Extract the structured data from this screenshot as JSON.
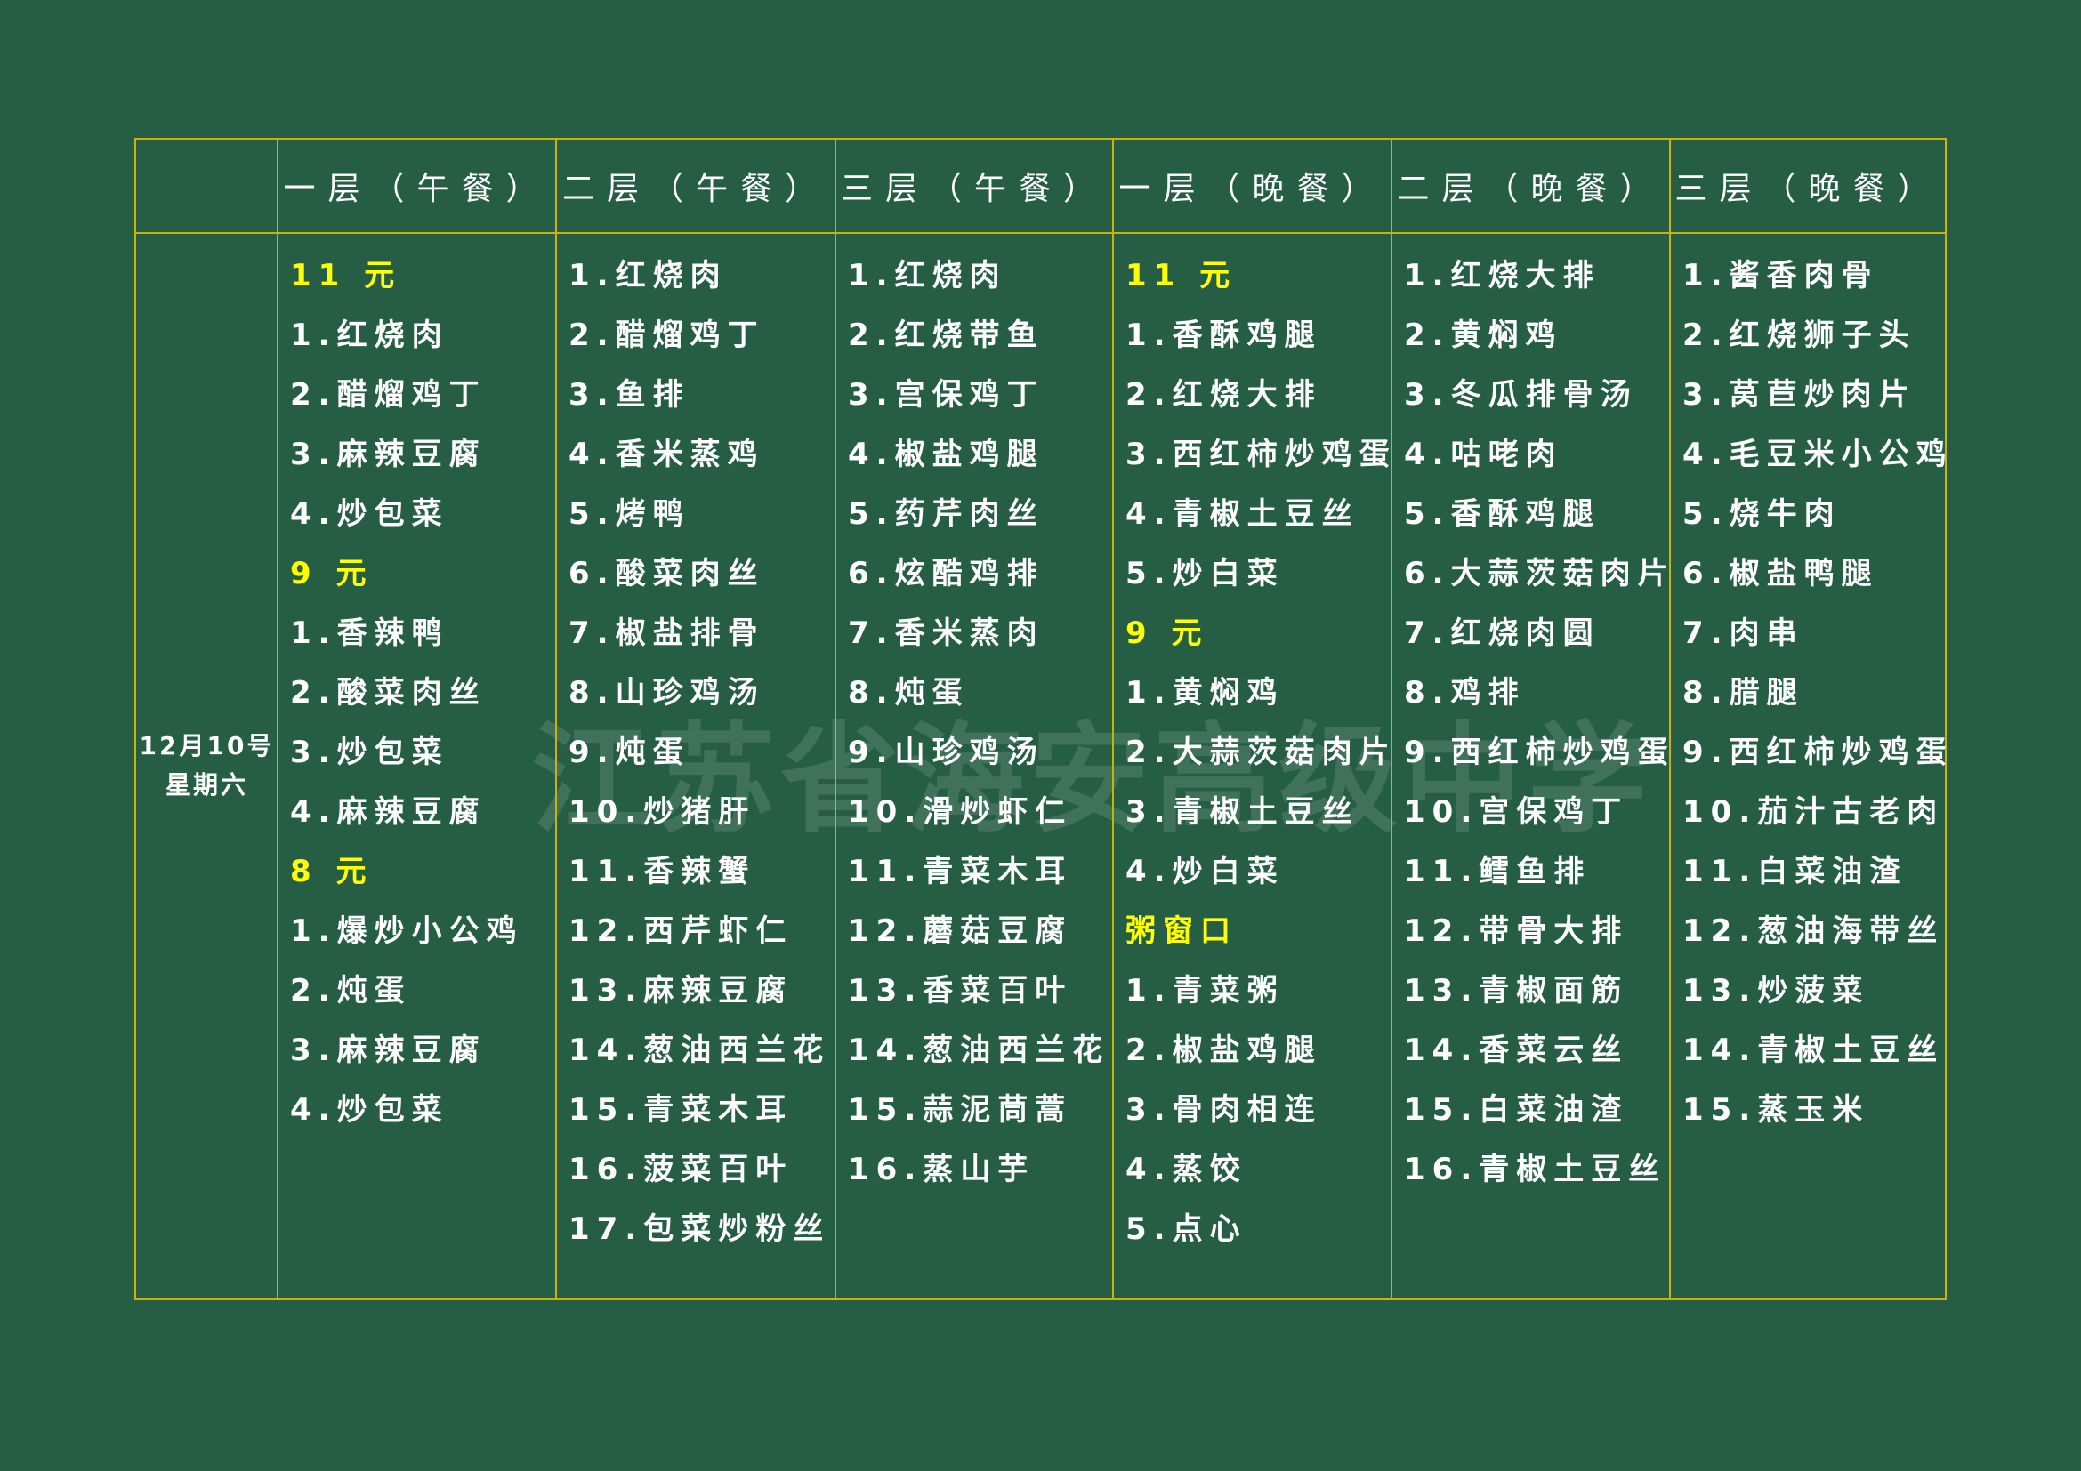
{
  "colors": {
    "background": "#255e45",
    "border": "#c9b30a",
    "price_heading": "#ffff00",
    "text": "#ffffff"
  },
  "watermark": "江苏省海安高级中学",
  "date": {
    "line1": "12月10号",
    "line2": "星期六"
  },
  "columns": [
    {
      "header": "一层（午餐）",
      "items": [
        {
          "text": "11 元",
          "price": true
        },
        {
          "text": "1.红烧肉"
        },
        {
          "text": "2.醋熘鸡丁"
        },
        {
          "text": "3.麻辣豆腐"
        },
        {
          "text": "4.炒包菜"
        },
        {
          "text": "9 元",
          "price": true
        },
        {
          "text": "1.香辣鸭"
        },
        {
          "text": "2.酸菜肉丝"
        },
        {
          "text": "3.炒包菜"
        },
        {
          "text": "4.麻辣豆腐"
        },
        {
          "text": "8 元",
          "price": true
        },
        {
          "text": "1.爆炒小公鸡"
        },
        {
          "text": "2.炖蛋"
        },
        {
          "text": "3.麻辣豆腐"
        },
        {
          "text": "4.炒包菜"
        }
      ]
    },
    {
      "header": "二层（午餐）",
      "items": [
        {
          "text": "1.红烧肉"
        },
        {
          "text": "2.醋熘鸡丁"
        },
        {
          "text": "3.鱼排"
        },
        {
          "text": "4.香米蒸鸡"
        },
        {
          "text": "5.烤鸭"
        },
        {
          "text": "6.酸菜肉丝"
        },
        {
          "text": "7.椒盐排骨"
        },
        {
          "text": "8.山珍鸡汤"
        },
        {
          "text": "9.炖蛋"
        },
        {
          "text": "10.炒猪肝"
        },
        {
          "text": "11.香辣蟹"
        },
        {
          "text": "12.西芹虾仁"
        },
        {
          "text": "13.麻辣豆腐"
        },
        {
          "text": "14.葱油西兰花"
        },
        {
          "text": "15.青菜木耳"
        },
        {
          "text": "16.菠菜百叶"
        },
        {
          "text": "17.包菜炒粉丝"
        }
      ]
    },
    {
      "header": "三层（午餐）",
      "items": [
        {
          "text": "1.红烧肉"
        },
        {
          "text": "2.红烧带鱼"
        },
        {
          "text": "3.宫保鸡丁"
        },
        {
          "text": "4.椒盐鸡腿"
        },
        {
          "text": "5.药芹肉丝"
        },
        {
          "text": "6.炫酷鸡排"
        },
        {
          "text": "7.香米蒸肉"
        },
        {
          "text": "8.炖蛋"
        },
        {
          "text": "9.山珍鸡汤"
        },
        {
          "text": "10.滑炒虾仁"
        },
        {
          "text": "11.青菜木耳"
        },
        {
          "text": "12.蘑菇豆腐"
        },
        {
          "text": "13.香菜百叶"
        },
        {
          "text": "14.葱油西兰花"
        },
        {
          "text": "15.蒜泥茼蒿"
        },
        {
          "text": "16.蒸山芋"
        }
      ]
    },
    {
      "header": "一层（晚餐）",
      "items": [
        {
          "text": "11 元",
          "price": true
        },
        {
          "text": "1.香酥鸡腿"
        },
        {
          "text": "2.红烧大排"
        },
        {
          "text": "3.西红柿炒鸡蛋"
        },
        {
          "text": "4.青椒土豆丝"
        },
        {
          "text": "5.炒白菜"
        },
        {
          "text": "9 元",
          "price": true
        },
        {
          "text": "1.黄焖鸡"
        },
        {
          "text": "2.大蒜茨菇肉片"
        },
        {
          "text": "3.青椒土豆丝"
        },
        {
          "text": "4.炒白菜"
        },
        {
          "text": "粥窗口",
          "price": true
        },
        {
          "text": "1.青菜粥"
        },
        {
          "text": "2.椒盐鸡腿"
        },
        {
          "text": "3.骨肉相连"
        },
        {
          "text": "4.蒸饺"
        },
        {
          "text": "5.点心"
        }
      ]
    },
    {
      "header": "二层（晚餐）",
      "items": [
        {
          "text": "1.红烧大排"
        },
        {
          "text": "2.黄焖鸡"
        },
        {
          "text": "3.冬瓜排骨汤"
        },
        {
          "text": "4.咕咾肉"
        },
        {
          "text": "5.香酥鸡腿"
        },
        {
          "text": "6.大蒜茨菇肉片"
        },
        {
          "text": "7.红烧肉圆"
        },
        {
          "text": "8.鸡排"
        },
        {
          "text": "9.西红柿炒鸡蛋"
        },
        {
          "text": "10.宫保鸡丁"
        },
        {
          "text": "11.鳕鱼排"
        },
        {
          "text": "12.带骨大排"
        },
        {
          "text": "13.青椒面筋"
        },
        {
          "text": "14.香菜云丝"
        },
        {
          "text": "15.白菜油渣"
        },
        {
          "text": "16.青椒土豆丝"
        }
      ]
    },
    {
      "header": "三层（晚餐）",
      "items": [
        {
          "text": "1.酱香肉骨"
        },
        {
          "text": "2.红烧狮子头"
        },
        {
          "text": "3.莴苣炒肉片"
        },
        {
          "text": "4.毛豆米小公鸡"
        },
        {
          "text": "5.烧牛肉"
        },
        {
          "text": "6.椒盐鸭腿"
        },
        {
          "text": "7.肉串"
        },
        {
          "text": "8.腊腿"
        },
        {
          "text": "9.西红柿炒鸡蛋"
        },
        {
          "text": "10.茄汁古老肉"
        },
        {
          "text": "11.白菜油渣"
        },
        {
          "text": "12.葱油海带丝"
        },
        {
          "text": "13.炒菠菜"
        },
        {
          "text": "14.青椒土豆丝"
        },
        {
          "text": "15.蒸玉米"
        }
      ]
    }
  ]
}
